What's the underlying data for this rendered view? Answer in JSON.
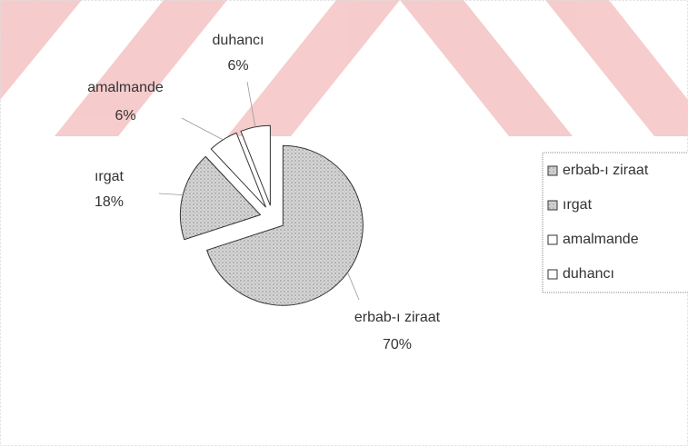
{
  "chart_data": {
    "type": "pie",
    "categories": [
      "erbab-ı ziraat",
      "ırgat",
      "amalmande",
      "duhancı"
    ],
    "values": [
      70,
      18,
      6,
      6
    ],
    "value_labels": [
      "70%",
      "18%",
      "6%",
      "6%"
    ],
    "colors": [
      "#c4c4c4",
      "#c4c4c4",
      "#ffffff",
      "#ffffff"
    ],
    "legend": "right"
  }
}
